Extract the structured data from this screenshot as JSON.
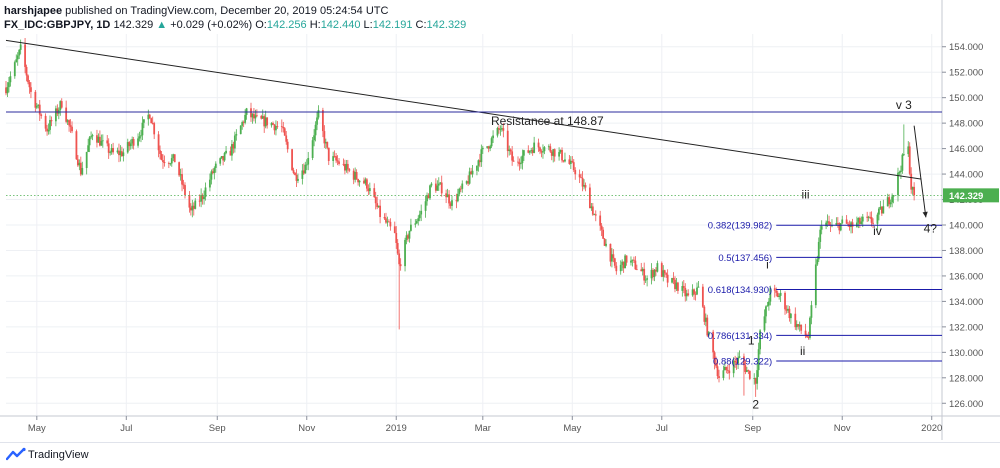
{
  "header": {
    "user": "harshjapee",
    "published": "published on TradingView.com, December 20, 2019 05:24:54 UTC",
    "symbol": "FX_IDC:GBPJPY, 1D",
    "last": "142.329",
    "change_arrow": "▲",
    "change": "+0.029 (+0.02%)",
    "o_label": "O:",
    "o_value": "142.256",
    "h_label": "H:",
    "h_value": "142.440",
    "l_label": "L:",
    "l_value": "142.191",
    "c_label": "C:",
    "c_value": "142.329"
  },
  "footer": {
    "brand": "TradingView",
    "logo_icon": "tradingview-logo-icon"
  },
  "colors": {
    "up": "#26a69a",
    "up_candle": "#4caf50",
    "down_candle": "#ef5350",
    "fib": "#1a1aaa",
    "resistance": "#2b2b9e",
    "trendline": "#222222",
    "price_line": "#4caf50",
    "grid": "#eef0f4",
    "axis_text": "#555555"
  },
  "chart_data": {
    "type": "candlestick",
    "symbol": "FX_IDC:GBPJPY",
    "interval": "1D",
    "last_price": 142.329,
    "last_price_label": "142.329",
    "ylim": [
      125,
      155
    ],
    "y_ticks": [
      126,
      128,
      130,
      132,
      134,
      136,
      138,
      140,
      142,
      144,
      146,
      148,
      150,
      152,
      154
    ],
    "y_tick_labels": [
      "126.000",
      "128.000",
      "130.000",
      "132.000",
      "134.000",
      "136.000",
      "138.000",
      "140.000",
      "142.000",
      "144.000",
      "146.000",
      "148.000",
      "150.000",
      "152.000",
      "154.000"
    ],
    "x_ticks": [
      {
        "date": "2018-05-01",
        "label": "May"
      },
      {
        "date": "2018-07-01",
        "label": "Jul"
      },
      {
        "date": "2018-09-01",
        "label": "Sep"
      },
      {
        "date": "2018-11-01",
        "label": "Nov"
      },
      {
        "date": "2019-01-01",
        "label": "2019"
      },
      {
        "date": "2019-03-01",
        "label": "Mar"
      },
      {
        "date": "2019-05-01",
        "label": "May"
      },
      {
        "date": "2019-07-01",
        "label": "Jul"
      },
      {
        "date": "2019-09-01",
        "label": "Sep"
      },
      {
        "date": "2019-11-01",
        "label": "Nov"
      },
      {
        "date": "2020-01-01",
        "label": "2020"
      }
    ],
    "x_range": [
      "2018-04-10",
      "2020-01-08"
    ],
    "close_path": [
      [
        "2018-04-10",
        150.8
      ],
      [
        "2018-04-16",
        152.5
      ],
      [
        "2018-04-20",
        153.8
      ],
      [
        "2018-04-27",
        150.4
      ],
      [
        "2018-05-08",
        147.5
      ],
      [
        "2018-05-18",
        149.6
      ],
      [
        "2018-05-25",
        147.0
      ],
      [
        "2018-05-31",
        144.2
      ],
      [
        "2018-06-08",
        147.3
      ],
      [
        "2018-06-15",
        146.3
      ],
      [
        "2018-06-22",
        145.6
      ],
      [
        "2018-06-29",
        145.7
      ],
      [
        "2018-07-10",
        147.2
      ],
      [
        "2018-07-17",
        148.8
      ],
      [
        "2018-07-25",
        145.2
      ],
      [
        "2018-08-03",
        145.1
      ],
      [
        "2018-08-14",
        141.0
      ],
      [
        "2018-08-22",
        142.3
      ],
      [
        "2018-08-30",
        144.4
      ],
      [
        "2018-09-10",
        145.8
      ],
      [
        "2018-09-21",
        148.8
      ],
      [
        "2018-09-28",
        148.2
      ],
      [
        "2018-10-05",
        148.1
      ],
      [
        "2018-10-15",
        147.6
      ],
      [
        "2018-10-24",
        143.8
      ],
      [
        "2018-10-31",
        144.6
      ],
      [
        "2018-11-09",
        148.6
      ],
      [
        "2018-11-16",
        145.3
      ],
      [
        "2018-11-23",
        144.9
      ],
      [
        "2018-12-03",
        143.9
      ],
      [
        "2018-12-12",
        143.2
      ],
      [
        "2018-12-21",
        140.8
      ],
      [
        "2018-12-31",
        139.2
      ],
      [
        "2019-01-03",
        136.8
      ],
      [
        "2019-01-10",
        139.6
      ],
      [
        "2019-01-18",
        141.0
      ],
      [
        "2019-01-25",
        143.1
      ],
      [
        "2019-02-01",
        142.9
      ],
      [
        "2019-02-08",
        141.7
      ],
      [
        "2019-02-18",
        143.3
      ],
      [
        "2019-02-28",
        145.6
      ],
      [
        "2019-03-13",
        147.6
      ],
      [
        "2019-03-22",
        144.8
      ],
      [
        "2019-03-29",
        145.5
      ],
      [
        "2019-04-05",
        146.2
      ],
      [
        "2019-04-15",
        146.0
      ],
      [
        "2019-04-23",
        145.5
      ],
      [
        "2019-05-03",
        144.3
      ],
      [
        "2019-05-10",
        142.7
      ],
      [
        "2019-05-17",
        140.5
      ],
      [
        "2019-05-31",
        136.4
      ],
      [
        "2019-06-07",
        137.3
      ],
      [
        "2019-06-14",
        136.7
      ],
      [
        "2019-06-21",
        135.8
      ],
      [
        "2019-06-28",
        136.7
      ],
      [
        "2019-07-05",
        135.6
      ],
      [
        "2019-07-12",
        135.2
      ],
      [
        "2019-07-19",
        134.3
      ],
      [
        "2019-07-26",
        135.0
      ],
      [
        "2019-08-02",
        131.2
      ],
      [
        "2019-08-09",
        128.1
      ],
      [
        "2019-08-15",
        128.7
      ],
      [
        "2019-08-23",
        129.5
      ],
      [
        "2019-08-29",
        128.4
      ],
      [
        "2019-09-03",
        127.8
      ],
      [
        "2019-09-06",
        131.4
      ],
      [
        "2019-09-13",
        134.7
      ],
      [
        "2019-09-20",
        134.4
      ],
      [
        "2019-09-27",
        132.8
      ],
      [
        "2019-10-03",
        131.8
      ],
      [
        "2019-10-09",
        131.2
      ],
      [
        "2019-10-14",
        136.6
      ],
      [
        "2019-10-18",
        140.3
      ],
      [
        "2019-10-25",
        139.8
      ],
      [
        "2019-11-01",
        140.1
      ],
      [
        "2019-11-08",
        139.9
      ],
      [
        "2019-11-15",
        140.3
      ],
      [
        "2019-11-22",
        140.3
      ],
      [
        "2019-11-29",
        141.3
      ],
      [
        "2019-12-06",
        142.6
      ],
      [
        "2019-12-13",
        145.5
      ],
      [
        "2019-12-16",
        145.9
      ],
      [
        "2019-12-18",
        143.0
      ],
      [
        "2019-12-20",
        142.3
      ]
    ],
    "drawings": {
      "trendline": {
        "from": [
          "2018-04-10",
          154.5
        ],
        "to": [
          "2019-12-25",
          143.6
        ]
      },
      "resistance": {
        "price": 148.87,
        "label": "Resistance at 148.87"
      },
      "fib_levels": [
        {
          "price": 139.982,
          "label": "0.382(139.982)"
        },
        {
          "price": 137.456,
          "label": "0.5(137.456)"
        },
        {
          "price": 134.93,
          "label": "0.618(134.930)"
        },
        {
          "price": 131.334,
          "label": "0.786(131.334)"
        },
        {
          "price": 129.322,
          "label": "0.88(129.322)"
        }
      ],
      "fib_start": "2019-09-17",
      "projection": {
        "from": [
          "2019-12-20",
          147.8
        ],
        "to": [
          "2019-12-28",
          140.6
        ]
      },
      "wave_labels": [
        {
          "text": "1",
          "date": "2019-08-31",
          "price": 130.6
        },
        {
          "text": "2",
          "date": "2019-09-03",
          "price": 125.6
        },
        {
          "text": "i",
          "date": "2019-09-11",
          "price": 136.6
        },
        {
          "text": "ii",
          "date": "2019-10-05",
          "price": 129.8
        },
        {
          "text": "iii",
          "date": "2019-10-07",
          "price": 142.1
        },
        {
          "text": "iv",
          "date": "2019-11-25",
          "price": 139.2
        },
        {
          "text": "v 3",
          "date": "2019-12-13",
          "price": 149.1
        },
        {
          "text": "4?",
          "date": "2019-12-31",
          "price": 139.4
        }
      ]
    }
  }
}
